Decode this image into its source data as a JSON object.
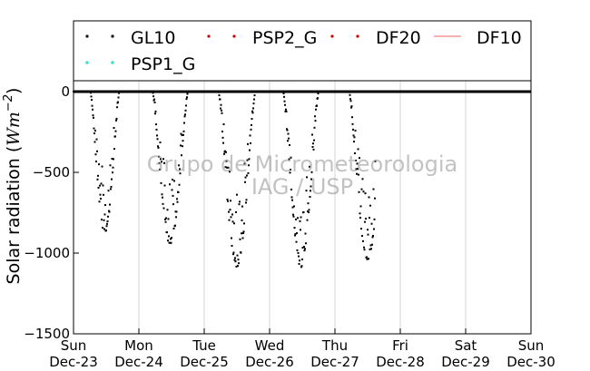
{
  "chart_data": {
    "type": "scatter",
    "title": "",
    "xlabel": "",
    "ylabel": "Solar radiation (W m^-2)",
    "ylabel_parts": {
      "main": "Solar radiation (",
      "unit": "Wm",
      "exp": "−2",
      "close": ")"
    },
    "ylim": [
      -1500,
      0
    ],
    "yticks": [
      0,
      -500,
      -1000,
      -1500
    ],
    "ytick_labels": [
      "0",
      "−500",
      "−1000",
      "−1500"
    ],
    "xlim": [
      0,
      7
    ],
    "xticks": [
      0,
      1,
      2,
      3,
      4,
      5,
      6,
      7
    ],
    "xtick_labels": [
      [
        "Sun",
        "Dec-23"
      ],
      [
        "Mon",
        "Dec-24"
      ],
      [
        "Tue",
        "Dec-25"
      ],
      [
        "Wed",
        "Dec-26"
      ],
      [
        "Thu",
        "Dec-27"
      ],
      [
        "Fri",
        "Dec-28"
      ],
      [
        "Sat",
        "Dec-29"
      ],
      [
        "Sun",
        "Dec-30"
      ]
    ],
    "grid": true,
    "legend_placement": "top",
    "watermark": [
      "Grupo de Micrometeorologia",
      "IAG / USP"
    ],
    "series": [
      {
        "name": "GL10",
        "color": "#000000",
        "days": [
          {
            "center": 0.48,
            "half_width": 0.22,
            "peak": -880
          },
          {
            "center": 1.48,
            "half_width": 0.27,
            "peak": -950
          },
          {
            "center": 2.5,
            "half_width": 0.28,
            "peak": -1100
          },
          {
            "center": 3.48,
            "half_width": 0.27,
            "peak": -1090
          },
          {
            "center": 4.5,
            "half_width": 0.28,
            "peak": -1050
          }
        ],
        "data_end_x": 4.62
      },
      {
        "name": "PSP2_G",
        "color": "#cc0000",
        "values": []
      },
      {
        "name": "DF20",
        "color": "#cc0000",
        "values": []
      },
      {
        "name": "DF10",
        "color": "#f08080",
        "values": []
      },
      {
        "name": "PSP1_G",
        "color": "#40e0d0",
        "values": []
      }
    ]
  },
  "legend": {
    "items": [
      {
        "label": "GL10",
        "marker": "dots",
        "color": "#000000"
      },
      {
        "label": "PSP2_G",
        "marker": "dots",
        "color": "#cc0000"
      },
      {
        "label": "DF20",
        "marker": "dots",
        "color": "#cc0000"
      },
      {
        "label": "DF10",
        "marker": "line",
        "color": "#f08080"
      },
      {
        "label": "PSP1_G",
        "marker": "dots",
        "color": "#40e0d0"
      }
    ]
  }
}
